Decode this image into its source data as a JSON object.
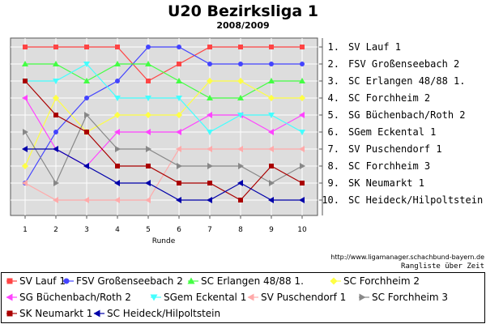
{
  "chart_data": {
    "type": "line",
    "title": "U20 Bezirksliga 1",
    "subtitle": "2008/2009",
    "xlabel": "Runde",
    "x": [
      1,
      2,
      3,
      4,
      5,
      6,
      7,
      8,
      9,
      10
    ],
    "ylim": [
      1,
      10
    ],
    "y_inverted": true,
    "grid": true,
    "legend_position": "bottom",
    "rank_labels": [
      "1. SV Lauf 1",
      "2. FSV Großenseebach 2",
      "3. SC Erlangen 48/88 1.",
      "4. SC Forchheim 2",
      "5. SG Büchenbach/Roth 2",
      "6. SGem Eckental 1",
      "7. SV Puschendorf 1",
      "8. SC Forchheim 3",
      "9. SK Neumarkt 1",
      "10. SC Heideck/Hilpoltstein"
    ],
    "series": [
      {
        "name": "SV Lauf 1",
        "color": "#ff4444",
        "marker": "square",
        "values": [
          1,
          1,
          1,
          1,
          3,
          2,
          1,
          1,
          1,
          1
        ]
      },
      {
        "name": "FSV Großenseebach 2",
        "color": "#4444ff",
        "marker": "circle",
        "values": [
          9,
          6,
          4,
          3,
          1,
          1,
          2,
          2,
          2,
          2
        ]
      },
      {
        "name": "SC Erlangen 48/88 1.",
        "color": "#44ff44",
        "marker": "triangle-up",
        "values": [
          2,
          2,
          3,
          2,
          2,
          3,
          4,
          4,
          3,
          3
        ]
      },
      {
        "name": "SC Forchheim 2",
        "color": "#ffff44",
        "marker": "diamond",
        "values": [
          8,
          4,
          6,
          5,
          5,
          5,
          3,
          3,
          4,
          4
        ]
      },
      {
        "name": "SG Büchenbach/Roth 2",
        "color": "#ff44ff",
        "marker": "triangle-left",
        "values": [
          4,
          7,
          8,
          6,
          6,
          6,
          5,
          5,
          6,
          5
        ]
      },
      {
        "name": "SGem Eckental 1",
        "color": "#44ffff",
        "marker": "triangle-down",
        "values": [
          3,
          3,
          2,
          4,
          4,
          4,
          6,
          5,
          5,
          6
        ]
      },
      {
        "name": "SV Puschendorf 1",
        "color": "#ffaaaa",
        "marker": "triangle-left",
        "values": [
          9,
          10,
          10,
          10,
          10,
          7,
          7,
          7,
          7,
          7
        ]
      },
      {
        "name": "SC Forchheim 3",
        "color": "#888888",
        "marker": "triangle-right",
        "values": [
          6,
          9,
          5,
          7,
          7,
          8,
          8,
          8,
          9,
          8
        ]
      },
      {
        "name": "SK Neumarkt 1",
        "color": "#aa0000",
        "marker": "square",
        "values": [
          3,
          5,
          6,
          8,
          8,
          9,
          9,
          10,
          8,
          9
        ]
      },
      {
        "name": "SC Heideck/Hilpoltstein",
        "color": "#0000aa",
        "marker": "triangle-left",
        "values": [
          7,
          7,
          8,
          9,
          9,
          10,
          10,
          9,
          10,
          10
        ]
      }
    ]
  },
  "footer": {
    "url": "http://www.ligamanager.schachbund-bayern.de",
    "caption": "Rangliste über Zeit"
  }
}
